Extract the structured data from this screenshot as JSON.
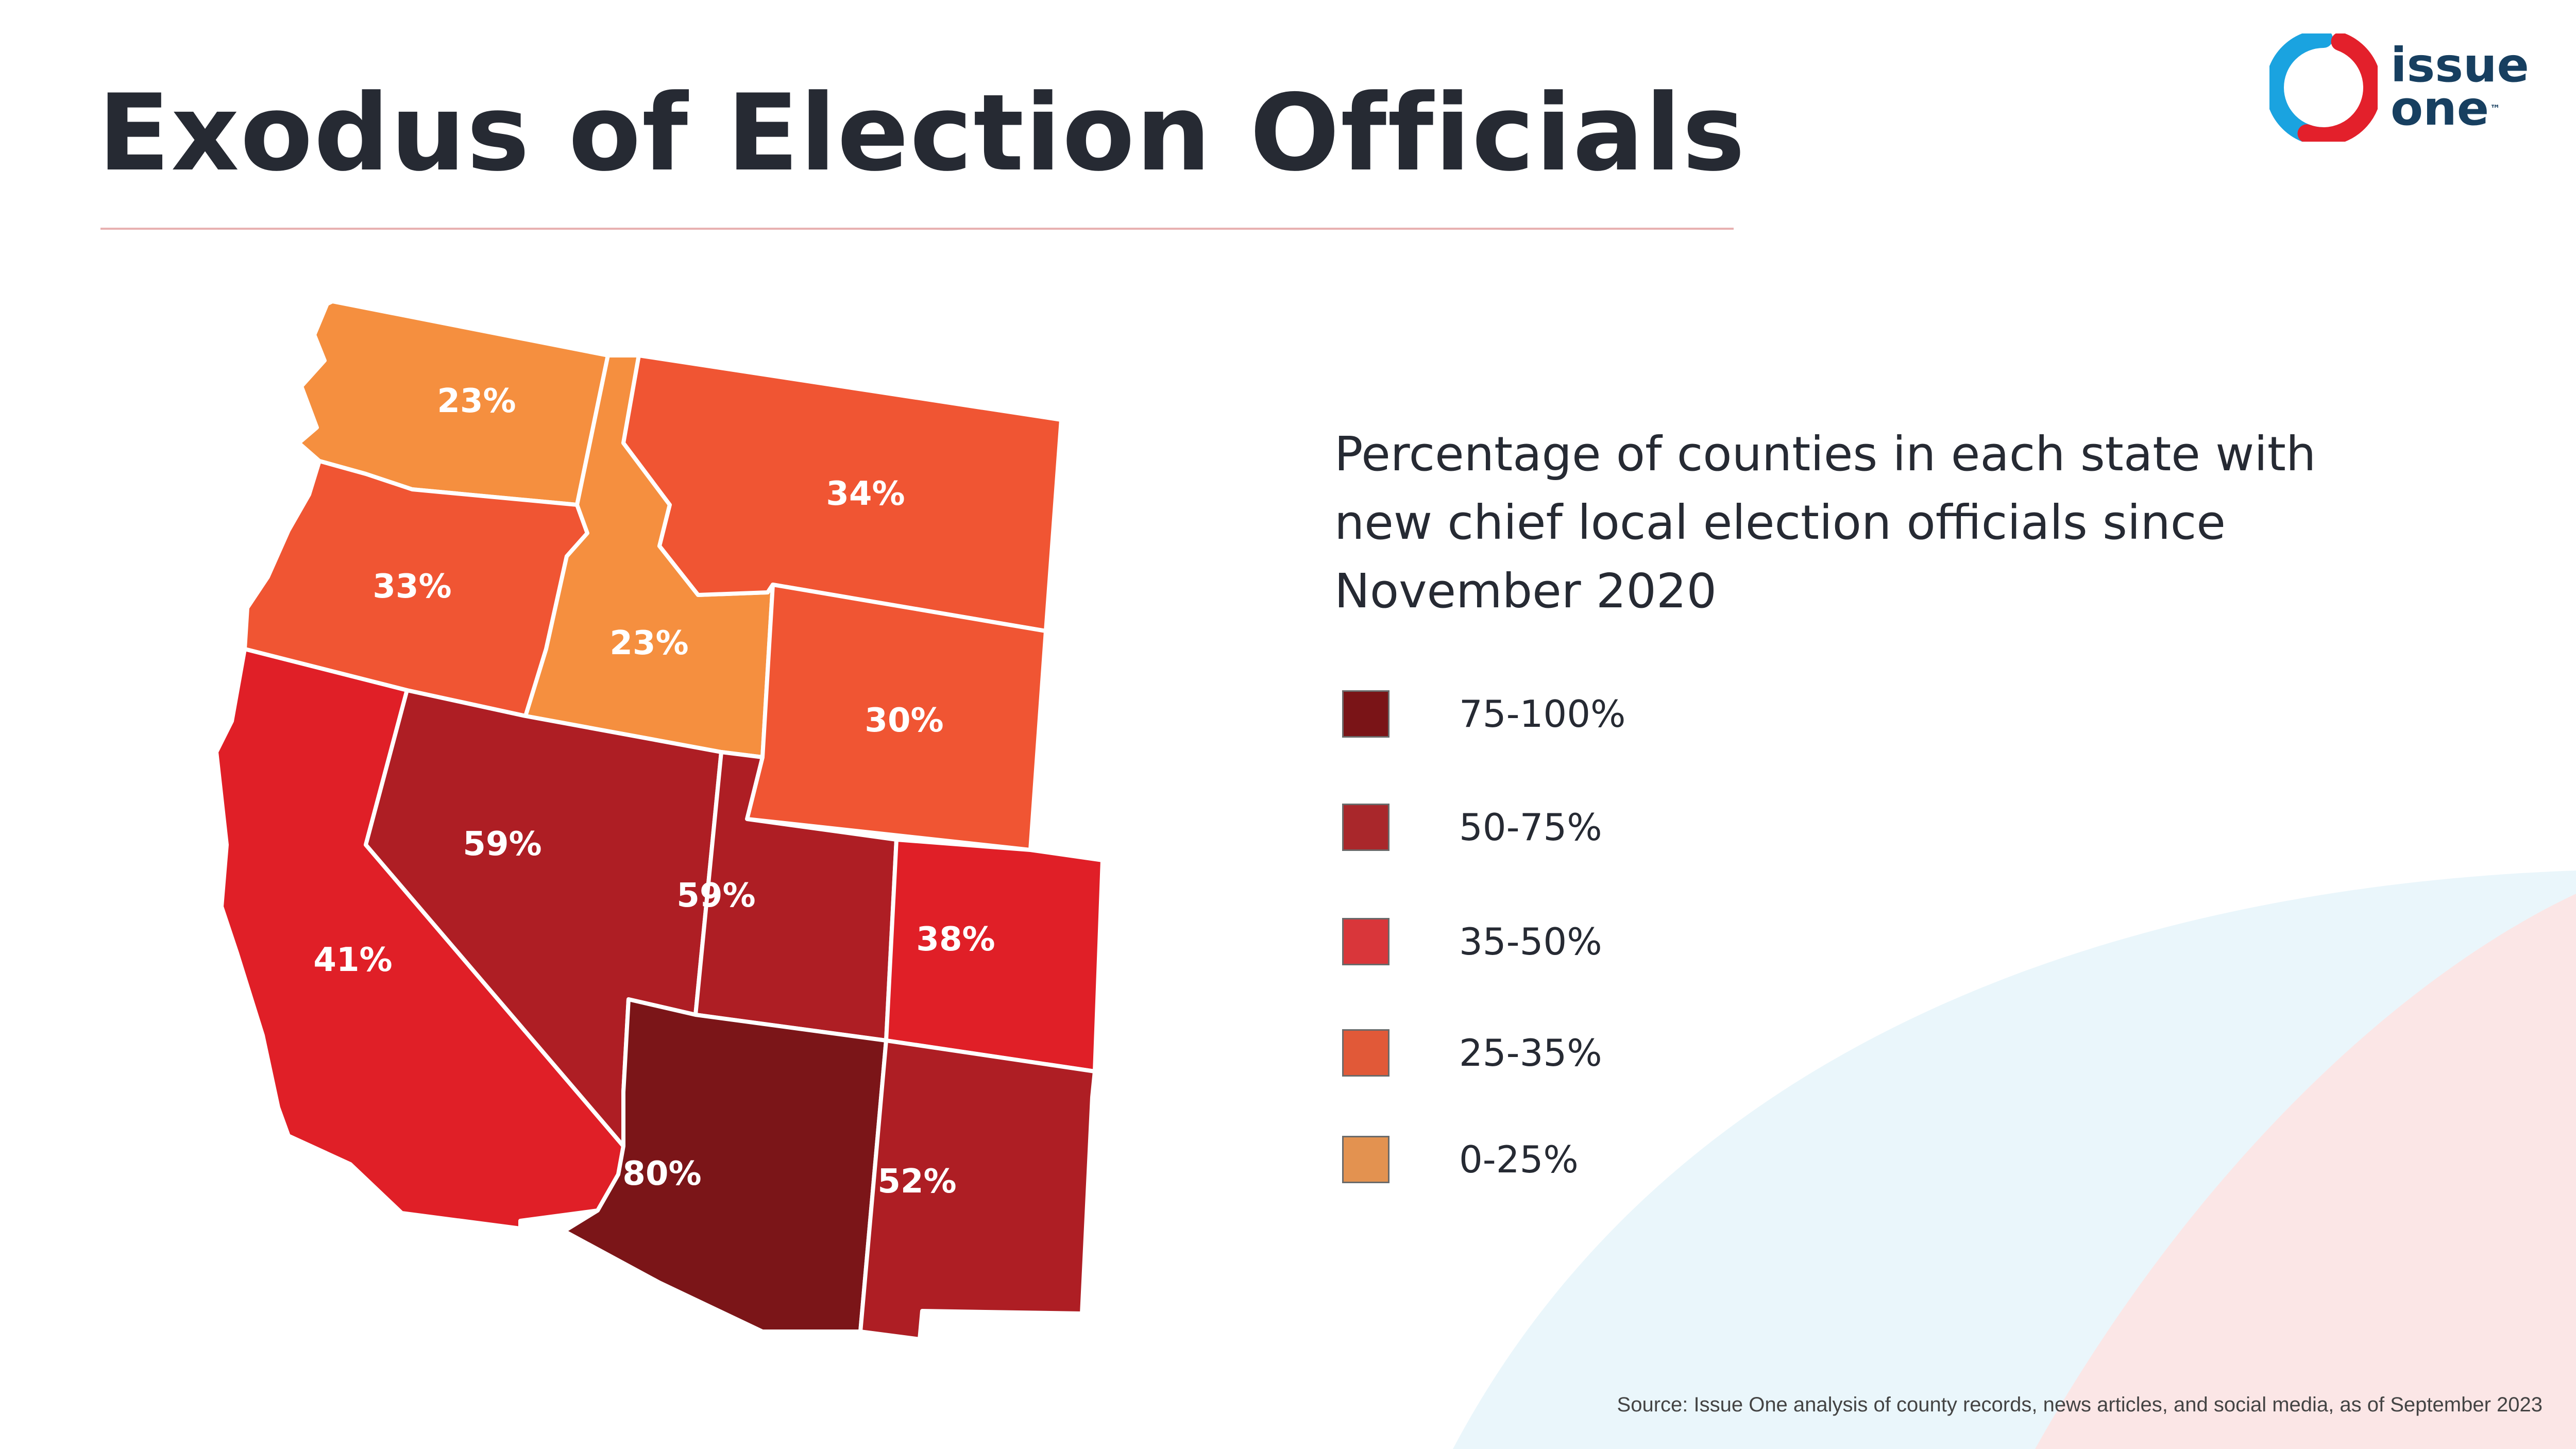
{
  "title": "Exodus of Election Officials",
  "logo": {
    "line1": "issue",
    "line2": "one",
    "trademark": "™",
    "ring_colors": [
      "#1aa3e0",
      "#e3202b"
    ]
  },
  "subtitle": "Percentage of counties in each state with new chief local election officials since November 2020",
  "legend": [
    {
      "label": "75-100%",
      "color": "#7a1417"
    },
    {
      "label": "50-75%",
      "color": "#a9272b"
    },
    {
      "label": "35-50%",
      "color": "#d9363a"
    },
    {
      "label": "25-35%",
      "color": "#e15938"
    },
    {
      "label": "0-25%",
      "color": "#e39250"
    }
  ],
  "map": {
    "states": [
      {
        "id": "WA",
        "value": "23%",
        "color": "#f58f3f"
      },
      {
        "id": "OR",
        "value": "33%",
        "color": "#f05533"
      },
      {
        "id": "ID",
        "value": "23%",
        "color": "#f58f3f"
      },
      {
        "id": "MT",
        "value": "34%",
        "color": "#f05533"
      },
      {
        "id": "WY",
        "value": "30%",
        "color": "#f05533"
      },
      {
        "id": "CA",
        "value": "41%",
        "color": "#e01f27"
      },
      {
        "id": "NV",
        "value": "59%",
        "color": "#ae1e24"
      },
      {
        "id": "UT",
        "value": "59%",
        "color": "#ae1e24"
      },
      {
        "id": "CO",
        "value": "38%",
        "color": "#e01f27"
      },
      {
        "id": "AZ",
        "value": "80%",
        "color": "#7b1518"
      },
      {
        "id": "NM",
        "value": "52%",
        "color": "#ae1e24"
      }
    ]
  },
  "source": "Source: Issue One analysis of county records, news articles, and social media, as of September 2023",
  "background": {
    "arc_blue": "#eaf6fb",
    "arc_pink": "#fbe6e6"
  }
}
